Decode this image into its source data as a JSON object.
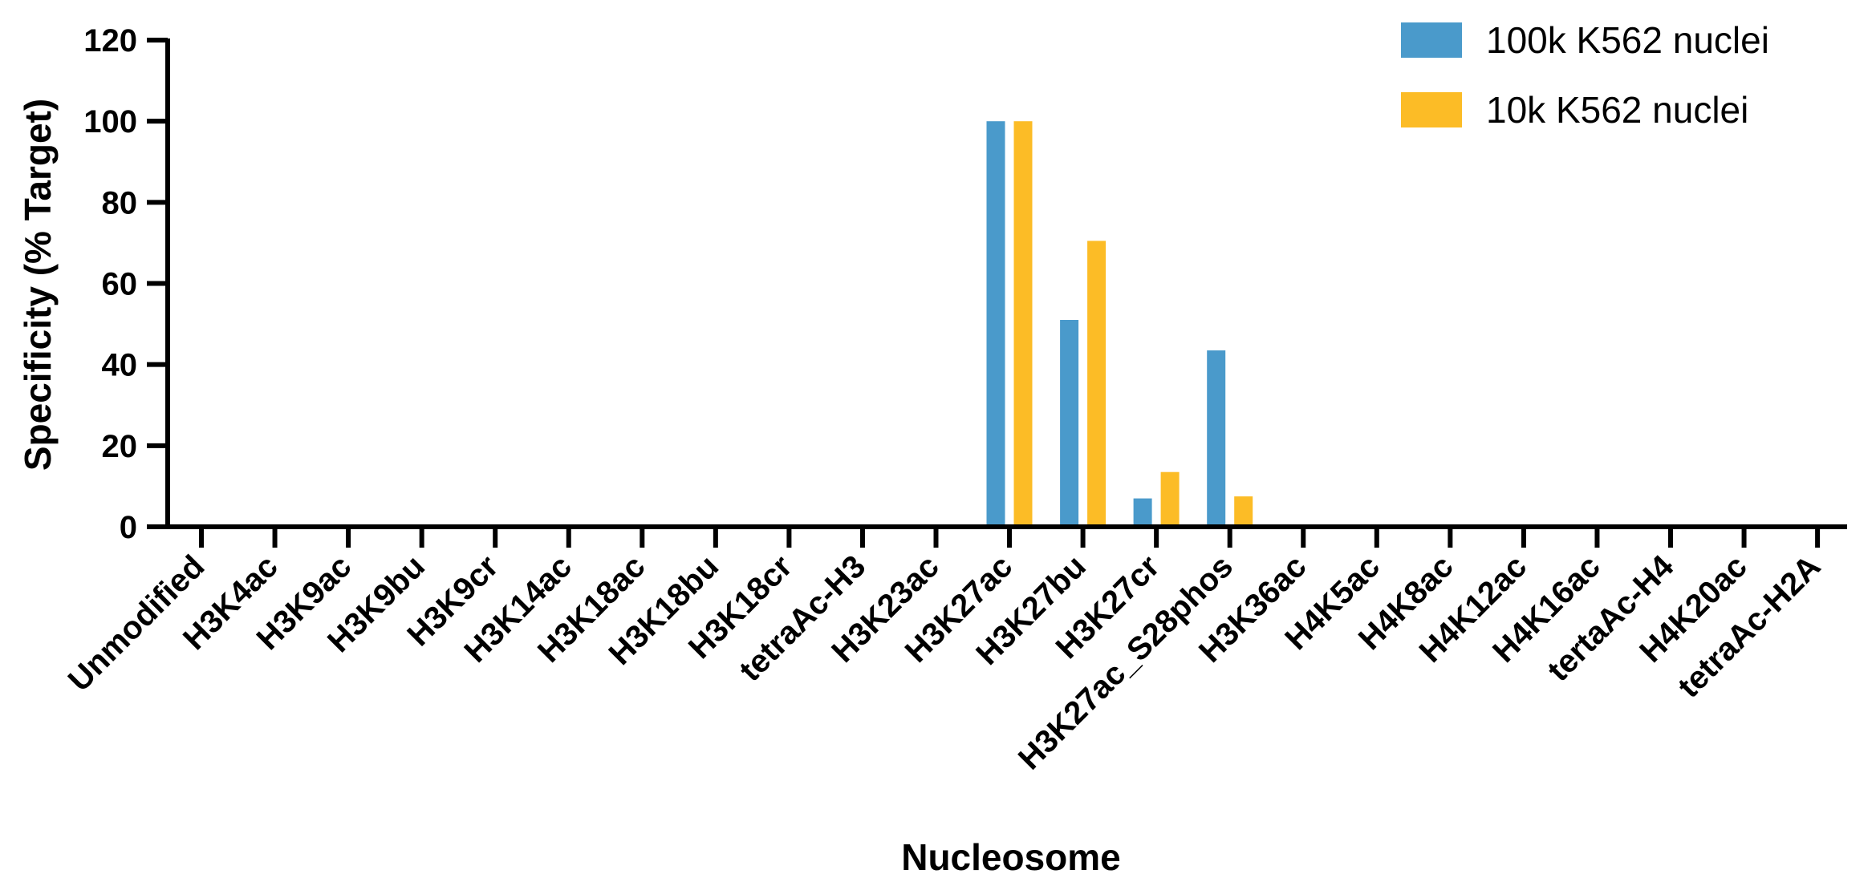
{
  "chart_data": {
    "type": "bar",
    "title": "",
    "xlabel": "Nucleosome",
    "ylabel": "Specificity (% Target)",
    "ylim": [
      0,
      120
    ],
    "yticks": [
      0,
      20,
      40,
      60,
      80,
      100,
      120
    ],
    "grid": false,
    "legend_position": "top-right",
    "categories": [
      "Unmodified",
      "H3K4ac",
      "H3K9ac",
      "H3K9bu",
      "H3K9cr",
      "H3K14ac",
      "H3K18ac",
      "H3K18bu",
      "H3K18cr",
      "tetraAc-H3",
      "H3K23ac",
      "H3K27ac",
      "H3K27bu",
      "H3K27cr",
      "H3K27ac_S28phos",
      "H3K36ac",
      "H4K5ac",
      "H4K8ac",
      "H4K12ac",
      "H4K16ac",
      "tertaAc-H4",
      "H4K20ac",
      "tetraAc-H2A"
    ],
    "series": [
      {
        "name": "100k K562 nuclei",
        "color": "#4a9acb",
        "values": [
          0,
          0,
          0,
          0,
          0,
          0,
          0,
          0,
          0,
          0,
          0,
          100,
          51,
          7,
          43.5,
          0,
          0,
          0,
          0,
          0,
          0,
          0,
          0.5
        ]
      },
      {
        "name": "10k K562 nuclei",
        "color": "#fcbc26",
        "values": [
          0,
          0,
          0,
          0,
          0,
          0,
          0,
          0,
          0,
          0,
          0,
          100,
          70.5,
          13.5,
          7.5,
          0,
          0,
          0,
          0,
          0,
          0,
          0,
          0.3
        ]
      }
    ]
  }
}
